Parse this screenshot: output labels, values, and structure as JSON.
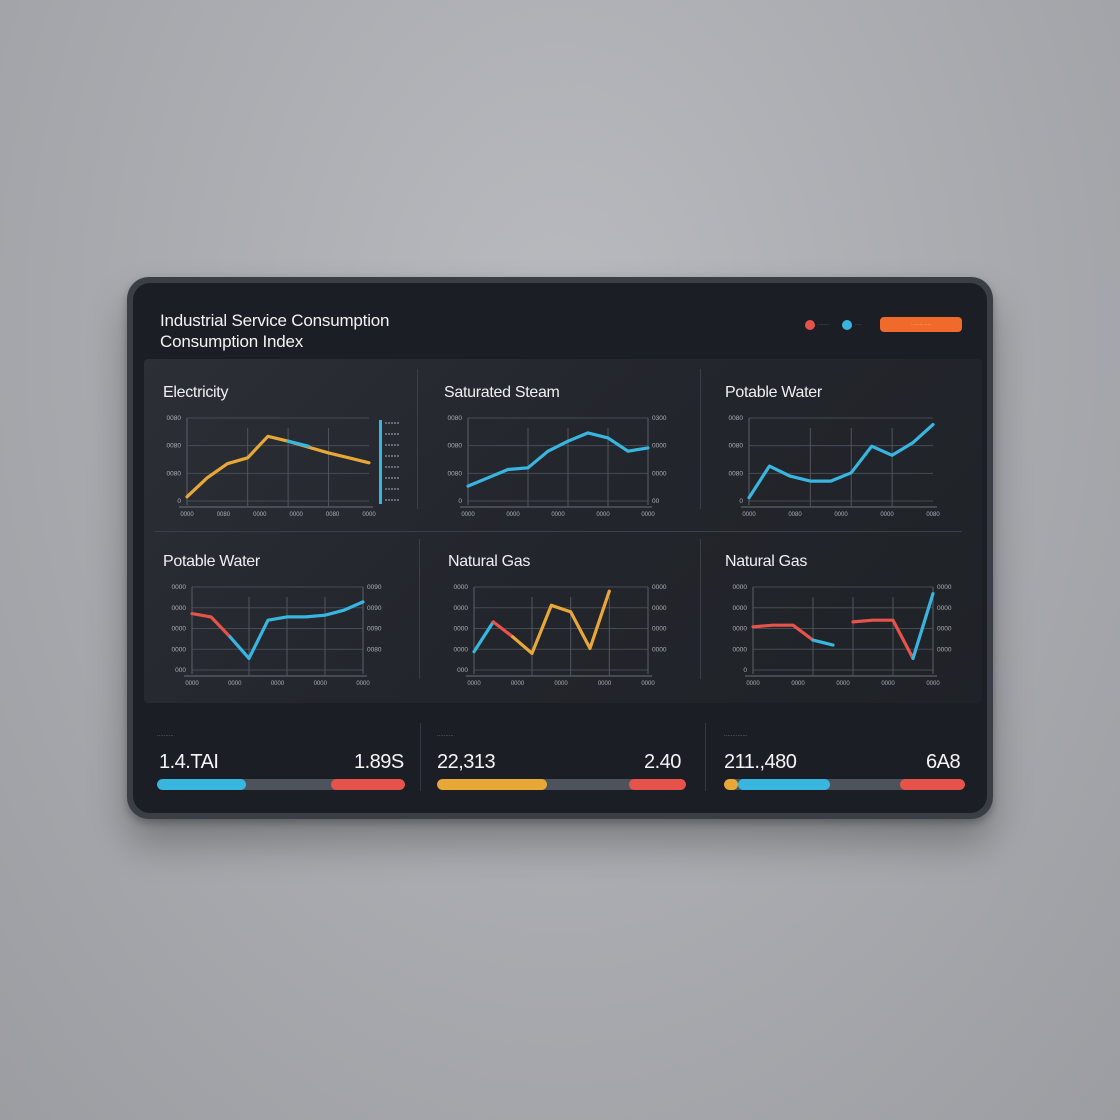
{
  "app": {
    "title_line1": "Industrial Service Consumption",
    "title_line2": "Consumption Index"
  },
  "header": {
    "legend": [
      {
        "color": "#e5534b",
        "label": "········"
      },
      {
        "color": "#38b6e0",
        "label": "·····"
      }
    ],
    "action_label": "· ········ ·····"
  },
  "colors": {
    "yellow": "#e8a838",
    "cyan": "#38b6e0",
    "red": "#e5534b",
    "grey": "#4d535c",
    "accent_orange": "#f06a2b"
  },
  "chart_data": [
    {
      "type": "line",
      "title": "Electricity",
      "y_ticks": [
        "0080",
        "0080",
        "0080",
        "0"
      ],
      "x_ticks": [
        "0000",
        "0080",
        "0000",
        "0000",
        "0080",
        "0000"
      ],
      "x": [
        0,
        1,
        2,
        3,
        4,
        5,
        6,
        7,
        8,
        9
      ],
      "series": [
        {
          "color": "#e8a838",
          "values": [
            5,
            28,
            45,
            52,
            78,
            72,
            65,
            58,
            52,
            46
          ]
        },
        {
          "color": "#38b6e0",
          "values": [
            null,
            null,
            null,
            null,
            null,
            72,
            66,
            null,
            null,
            null
          ]
        }
      ],
      "ylim": [
        0,
        100
      ]
    },
    {
      "type": "line",
      "title": "Saturated Steam",
      "y_ticks": [
        "0080",
        "0080",
        "0080",
        "0"
      ],
      "y_ticks_right": [
        "0300",
        "0000",
        "0000",
        "00"
      ],
      "x_ticks": [
        "0000",
        "0000",
        "0000",
        "0000",
        "0000"
      ],
      "x": [
        0,
        1,
        2,
        3,
        4,
        5,
        6,
        7,
        8,
        9
      ],
      "series": [
        {
          "color": "#38b6e0",
          "values": [
            18,
            28,
            38,
            40,
            60,
            72,
            82,
            76,
            60,
            64
          ]
        }
      ],
      "ylim": [
        0,
        100
      ]
    },
    {
      "type": "line",
      "title": "Potable Water",
      "y_ticks": [
        "0080",
        "0080",
        "0080",
        "0"
      ],
      "x_ticks": [
        "0000",
        "0080",
        "0000",
        "0000",
        "0080"
      ],
      "x": [
        0,
        1,
        2,
        3,
        4,
        5,
        6,
        7,
        8,
        9
      ],
      "series": [
        {
          "color": "#38b6e0",
          "values": [
            4,
            42,
            30,
            24,
            24,
            34,
            66,
            55,
            70,
            92
          ]
        }
      ],
      "ylim": [
        0,
        100
      ]
    },
    {
      "type": "line",
      "title": "Potable Water",
      "y_ticks": [
        "0000",
        "0000",
        "0000",
        "0000",
        "000"
      ],
      "y_ticks_right": [
        "0090",
        "0090",
        "0090",
        "0080"
      ],
      "x_ticks": [
        "0000",
        "0000",
        "0000",
        "0000",
        "0000"
      ],
      "x": [
        0,
        1,
        2,
        3,
        4,
        5,
        6,
        7,
        8,
        9
      ],
      "series": [
        {
          "color": "#e5534b",
          "values": [
            68,
            64,
            40,
            null,
            null,
            null,
            null,
            null,
            null,
            null
          ]
        },
        {
          "color": "#38b6e0",
          "values": [
            null,
            null,
            40,
            14,
            60,
            64,
            64,
            66,
            72,
            82
          ]
        }
      ],
      "ylim": [
        0,
        100
      ]
    },
    {
      "type": "line",
      "title": "Natural Gas",
      "y_ticks": [
        "0000",
        "0000",
        "0000",
        "0000",
        "000"
      ],
      "y_ticks_right": [
        "0000",
        "0000",
        "0000",
        "0000"
      ],
      "x_ticks": [
        "0000",
        "0000",
        "0000",
        "0000",
        "0000"
      ],
      "x": [
        0,
        1,
        2,
        3,
        4,
        5,
        6,
        7,
        8,
        9
      ],
      "series": [
        {
          "color": "#38b6e0",
          "values": [
            22,
            58,
            null,
            null,
            null,
            null,
            null,
            null,
            null,
            null
          ]
        },
        {
          "color": "#e5534b",
          "values": [
            null,
            58,
            40,
            null,
            null,
            null,
            null,
            null,
            null,
            null
          ]
        },
        {
          "color": "#e8a838",
          "values": [
            null,
            null,
            40,
            20,
            78,
            70,
            26,
            95,
            null,
            null
          ]
        }
      ],
      "ylim": [
        0,
        100
      ]
    },
    {
      "type": "line",
      "title": "Natural Gas",
      "y_ticks": [
        "0000",
        "0000",
        "0000",
        "0000",
        "0"
      ],
      "y_ticks_right": [
        "0000",
        "0000",
        "0000",
        "0000"
      ],
      "x_ticks": [
        "0000",
        "0000",
        "0000",
        "0000",
        "0000"
      ],
      "x": [
        0,
        1,
        2,
        3,
        4,
        5,
        6,
        7,
        8,
        9
      ],
      "series": [
        {
          "color": "#e5534b",
          "values": [
            52,
            54,
            54,
            36,
            null,
            null,
            null,
            null,
            null,
            null
          ]
        },
        {
          "color": "#38b6e0",
          "values": [
            null,
            null,
            null,
            36,
            30,
            null,
            null,
            null,
            null,
            null
          ]
        },
        {
          "color": "#e5534b",
          "values": [
            null,
            null,
            null,
            null,
            null,
            58,
            60,
            60,
            14,
            null
          ]
        },
        {
          "color": "#38b6e0",
          "values": [
            null,
            null,
            null,
            null,
            null,
            null,
            null,
            null,
            14,
            92
          ]
        }
      ],
      "ylim": [
        0,
        100
      ]
    }
  ],
  "stats": [
    {
      "caption": "··········",
      "value_left": "1.4.TAI",
      "value_right": "1.89S",
      "bar": [
        {
          "color": "#38b6e0",
          "value": 0.36
        },
        {
          "color": "#4d535c",
          "value": 0.34
        },
        {
          "color": "#e5534b",
          "value": 0.3
        }
      ]
    },
    {
      "caption": "··········",
      "value_left": "22,313",
      "value_right": "2.40",
      "bar": [
        {
          "color": "#e8a838",
          "value": 0.44
        },
        {
          "color": "#4d535c",
          "value": 0.33
        },
        {
          "color": "#e5534b",
          "value": 0.23
        }
      ]
    },
    {
      "caption": "··············",
      "value_left": "211.,480",
      "value_right": "6A8",
      "bar": [
        {
          "color": "#e8a838",
          "value": 0.06
        },
        {
          "color": "#38b6e0",
          "value": 0.38
        },
        {
          "color": "#4d535c",
          "value": 0.29
        },
        {
          "color": "#e5534b",
          "value": 0.27
        }
      ]
    }
  ]
}
